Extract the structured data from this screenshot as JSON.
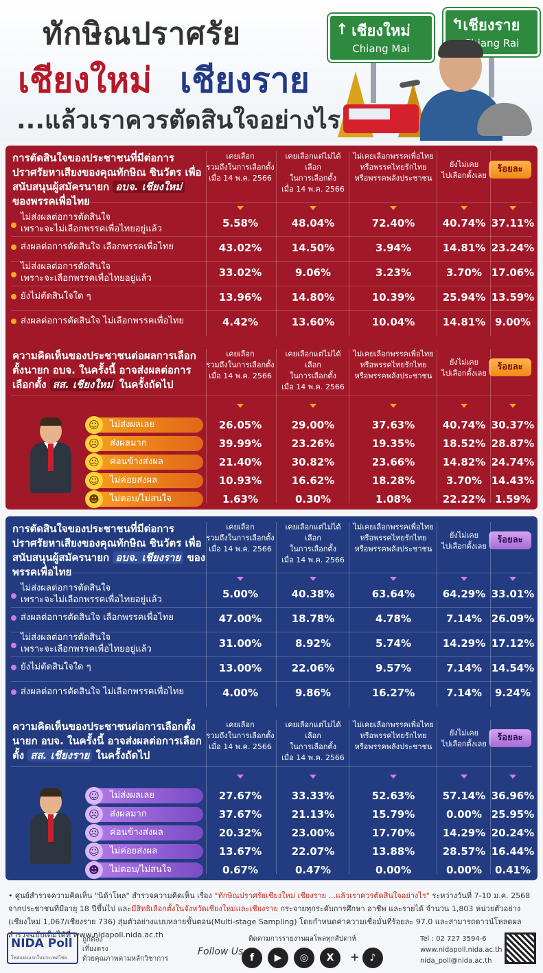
{
  "header": {
    "title_line1": "ทักษิณปราศรัย",
    "title_cm": "เชียงใหม่",
    "title_cr": "เชียงราย",
    "title_line3": "...แล้วเราควรตัดสินใจอย่างไร",
    "sign_cm_th": "เชียงใหม่",
    "sign_cm_en": "Chiang Mai",
    "sign_cr_th": "เชียงราย",
    "sign_cr_en": "Chiang Rai"
  },
  "columns": [
    "เคยเลือก\nรวมถึงในการเลือกตั้ง\nเมื่อ 14 พ.ค. 2566",
    "เคยเลือกแต่ไม่ได้เลือก\nในการเลือกตั้ง\nเมื่อ 14 พ.ค. 2566",
    "ไม่เคยเลือกพรรคเพื่อไทย\nหรือพรรคไทยรักไทย\nหรือพรรคพลังประชาชน",
    "ยังไม่เคย\nไปเลือกตั้งเลย"
  ],
  "percent_label": "ร้อยละ",
  "cm_q1": {
    "q_a": "การตัดสินใจของประชาชนที่มีต่อการปราศรัยหาเสียงของคุณทักษิณ ชินวัตร เพื่อสนับสนุนผู้สมัครนายก ",
    "q_hl": "อบจ. เชียงใหม่",
    "q_b": " ของพรรคเพื่อไทย",
    "rows": [
      {
        "label": "ไม่ส่งผลต่อการตัดสินใจ\nเพราะจะไม่เลือกพรรคเพื่อไทยอยู่แล้ว",
        "v": [
          "5.58%",
          "48.04%",
          "72.40%",
          "40.74%",
          "37.11%"
        ]
      },
      {
        "label": "ส่งผลต่อการตัดสินใจ เลือกพรรคเพื่อไทย",
        "v": [
          "43.02%",
          "14.50%",
          "3.94%",
          "14.81%",
          "23.24%"
        ]
      },
      {
        "label": "ไม่ส่งผลต่อการตัดสินใจ\nเพราะจะเลือกพรรคเพื่อไทยอยู่แล้ว",
        "v": [
          "33.02%",
          "9.06%",
          "3.23%",
          "3.70%",
          "17.06%"
        ]
      },
      {
        "label": "ยังไม่ตัดสินใจใด ๆ",
        "v": [
          "13.96%",
          "14.80%",
          "10.39%",
          "25.94%",
          "13.59%"
        ]
      },
      {
        "label": "ส่งผลต่อการตัดสินใจ ไม่เลือกพรรคเพื่อไทย",
        "v": [
          "4.42%",
          "13.60%",
          "10.04%",
          "14.81%",
          "9.00%"
        ]
      }
    ]
  },
  "cm_q2": {
    "q_a": "ความคิดเห็นของประชาชนต่อผลการเลือกตั้งนายก อบจ. ในครั้งนี้ อาจส่งผลต่อการเลือกตั้ง ",
    "q_hl": "สส. เชียงใหม่",
    "q_b": " ในครั้งถัดไป",
    "rows": [
      {
        "label": "ไม่ส่งผลเลย",
        "face": "☺",
        "v": [
          "26.05%",
          "29.00%",
          "37.63%",
          "40.74%",
          "30.37%"
        ]
      },
      {
        "label": "ส่งผลมาก",
        "face": "☹",
        "v": [
          "39.99%",
          "23.26%",
          "19.35%",
          "18.52%",
          "28.87%"
        ]
      },
      {
        "label": "ค่อนข้างส่งผล",
        "face": "☹",
        "v": [
          "21.40%",
          "30.82%",
          "23.66%",
          "14.82%",
          "24.74%"
        ]
      },
      {
        "label": "ไม่ค่อยส่งผล",
        "face": "☺",
        "v": [
          "10.93%",
          "16.62%",
          "18.28%",
          "3.70%",
          "14.43%"
        ]
      },
      {
        "label": "ไม่ตอบ/ไม่สนใจ",
        "face": "☻",
        "v": [
          "1.63%",
          "0.30%",
          "1.08%",
          "22.22%",
          "1.59%"
        ]
      }
    ]
  },
  "cr_q1": {
    "q_a": "การตัดสินใจของประชาชนที่มีต่อการปราศรัยหาเสียงของคุณทักษิณ ชินวัตร เพื่อสนับสนุนผู้สมัครนายก ",
    "q_hl": "อบจ. เชียงราย",
    "q_b": " ของพรรคเพื่อไทย",
    "rows": [
      {
        "label": "ไม่ส่งผลต่อการตัดสินใจ\nเพราะจะไม่เลือกพรรคเพื่อไทยอยู่แล้ว",
        "v": [
          "5.00%",
          "40.38%",
          "63.64%",
          "64.29%",
          "33.01%"
        ]
      },
      {
        "label": "ส่งผลต่อการตัดสินใจ เลือกพรรคเพื่อไทย",
        "v": [
          "47.00%",
          "18.78%",
          "4.78%",
          "7.14%",
          "26.09%"
        ]
      },
      {
        "label": "ไม่ส่งผลต่อการตัดสินใจ\nเพราะจะเลือกพรรคเพื่อไทยอยู่แล้ว",
        "v": [
          "31.00%",
          "8.92%",
          "5.74%",
          "14.29%",
          "17.12%"
        ]
      },
      {
        "label": "ยังไม่ตัดสินใจใด ๆ",
        "v": [
          "13.00%",
          "22.06%",
          "9.57%",
          "7.14%",
          "14.54%"
        ]
      },
      {
        "label": "ส่งผลต่อการตัดสินใจ ไม่เลือกพรรคเพื่อไทย",
        "v": [
          "4.00%",
          "9.86%",
          "16.27%",
          "7.14%",
          "9.24%"
        ]
      }
    ]
  },
  "cr_q2": {
    "q_a": "ความคิดเห็นของประชาชนต่อการเลือกตั้งนายก อบจ. ในครั้งนี้ อาจส่งผลต่อการเลือกตั้ง ",
    "q_hl": "สส. เชียงราย",
    "q_b": " ในครั้งถัดไป",
    "rows": [
      {
        "label": "ไม่ส่งผลเลย",
        "face": "☺",
        "v": [
          "27.67%",
          "33.33%",
          "52.63%",
          "57.14%",
          "36.96%"
        ]
      },
      {
        "label": "ส่งผลมาก",
        "face": "☹",
        "v": [
          "37.67%",
          "21.13%",
          "15.79%",
          "0.00%",
          "25.95%"
        ]
      },
      {
        "label": "ค่อนข้างส่งผล",
        "face": "☹",
        "v": [
          "20.32%",
          "23.00%",
          "17.70%",
          "14.29%",
          "20.24%"
        ]
      },
      {
        "label": "ไม่ค่อยส่งผล",
        "face": "☺",
        "v": [
          "13.67%",
          "22.07%",
          "13.88%",
          "28.57%",
          "16.44%"
        ]
      },
      {
        "label": "ไม่ตอบ/ไม่สนใจ",
        "face": "☻",
        "v": [
          "0.67%",
          "0.47%",
          "0.00%",
          "0.00%",
          "0.41%"
        ]
      }
    ]
  },
  "footer": {
    "note_a": "ศูนย์สำรวจความคิดเห็น \"นิด้าโพล\" สำรวจความคิดเห็น เรื่อง ",
    "note_em": "\"ทักษิณปราศรัยเชียงใหม่ เชียงราย ...แล้วเราควรตัดสินใจอย่างไร\"",
    "note_b": " ระหว่างวันที่ 7-10 ม.ค. 2568 จากประชาชนที่มีอายุ 18 ปีขึ้นไป และ",
    "note_em2": "มีสิทธิเลือกตั้งในจังหวัดเชียงใหม่และเชียงราย",
    "note_c": " กระจายทุกระดับการศึกษา อาชีพ และรายได้ จำนวน 1,803 หน่วยตัวอย่าง (เชียงใหม่ 1,067/เชียงราย 736) สุ่มตัวอย่างแบบหลายขั้นตอน(Multi-stage Sampling) โดยกำหนดค่าความเชื่อมั่นที่ร้อยละ 97.0 และสามารถดาวน์โหลดผลสำรวจฉบับเต็มได้ที่ www.nidapoll.nida.ac.th",
    "logo": "NIDA Poll",
    "logo_sub": "โพลแห่งแรกในประเทศไทย",
    "tag1": "ถูกต้อง",
    "tag2": "เที่ยงตรง",
    "tag3": "ด้วยคุณภาพตามหลักวิชาการ",
    "follow_top": "ติดตามการรายงานผลโพลทุกสัปดาห์",
    "follow": "Follow Us",
    "social": [
      "f",
      "▶",
      "◎",
      "X",
      "♪"
    ],
    "plus": "+",
    "tel": "Tel : 02 727 3594-6",
    "web": "www.nidapoll.nida.ac.th",
    "email": "nida_poll@nida.ac.th"
  }
}
